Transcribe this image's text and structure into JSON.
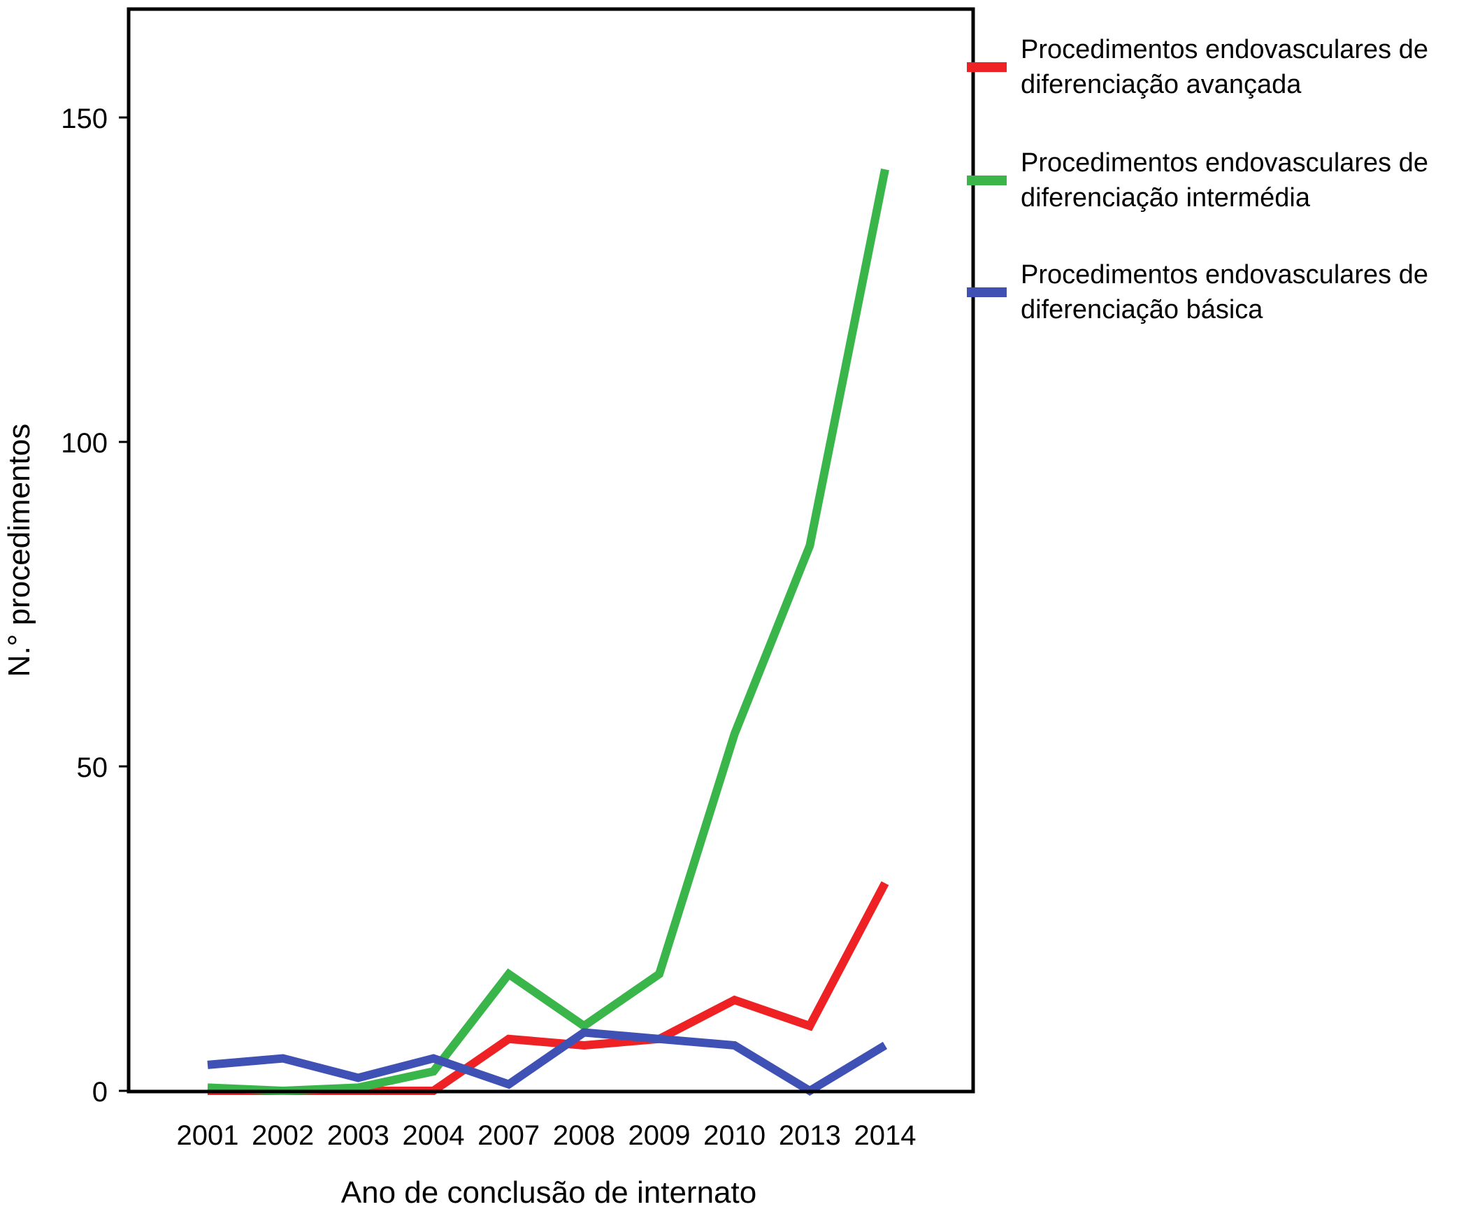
{
  "chart_data": {
    "type": "line",
    "title": "",
    "xlabel": "Ano de conclusão de internato",
    "ylabel": "N.° procedimentos",
    "categories": [
      "2001",
      "2002",
      "2003",
      "2004",
      "2007",
      "2008",
      "2009",
      "2010",
      "2013",
      "2014"
    ],
    "ylim": [
      0,
      165
    ],
    "yticks": [
      0,
      50,
      100,
      150
    ],
    "grid": false,
    "legend_position": "right",
    "series": [
      {
        "name_lines": [
          "Procedimentos endovasculares de",
          "diferenciação avançada"
        ],
        "color": "#ee2224",
        "values": [
          0,
          0,
          0,
          0,
          8,
          7,
          8,
          14,
          10,
          32
        ]
      },
      {
        "name_lines": [
          "Procedimentos endovasculares de",
          "diferenciação intermédia"
        ],
        "color": "#3ab54a",
        "values": [
          0.5,
          0,
          0.5,
          3,
          18,
          10,
          18,
          55,
          84,
          142
        ]
      },
      {
        "name_lines": [
          "Procedimentos endovasculares de",
          "diferenciação básica"
        ],
        "color": "#3f51b5",
        "values": [
          4,
          5,
          2,
          5,
          1,
          9,
          8,
          7,
          0,
          7
        ]
      }
    ]
  }
}
